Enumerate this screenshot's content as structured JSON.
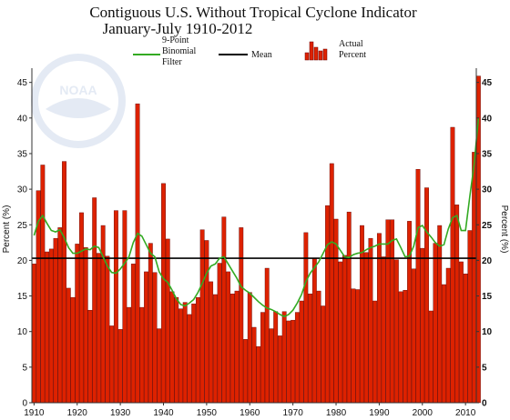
{
  "chart_data": {
    "type": "bar",
    "title": "Contiguous U.S. Without Tropical Cyclone Indicator",
    "subtitle": "January-July 1910-2012",
    "ylabel_left": "Percent (%)",
    "ylabel_right": "Percent (%)",
    "xlabel": "",
    "xlim": [
      1909.5,
      2012.5
    ],
    "ylim": [
      0,
      47
    ],
    "x_ticks": [
      1910,
      1920,
      1930,
      1940,
      1950,
      1960,
      1970,
      1980,
      1990,
      2000,
      2010
    ],
    "y_ticks_left": [
      0,
      5,
      10,
      15,
      20,
      25,
      30,
      35,
      40,
      45
    ],
    "y_ticks_right": [
      0,
      5,
      10,
      15,
      20,
      25,
      30,
      35,
      40,
      45
    ],
    "grid": false,
    "legend": {
      "position": "top",
      "entries": [
        {
          "label_lines": [
            "9-Point",
            "Binomial",
            "Filter"
          ],
          "kind": "line",
          "color": "#33aa22"
        },
        {
          "label_lines": [
            "Mean"
          ],
          "kind": "line",
          "color": "#000000"
        },
        {
          "label_lines": [
            "Actual",
            "Percent"
          ],
          "kind": "bar",
          "color": "#dd2200"
        }
      ]
    },
    "mean": 20.3,
    "years_start": 1910,
    "series": [
      {
        "name": "Actual Percent",
        "kind": "bar",
        "color": "#dd2200",
        "values": [
          19.5,
          29.8,
          33.4,
          21.2,
          21.6,
          23.1,
          24.6,
          33.9,
          16.1,
          14.8,
          22.3,
          26.7,
          21.8,
          13.0,
          28.8,
          21.0,
          24.9,
          20.6,
          10.8,
          27.0,
          10.3,
          27.0,
          13.4,
          19.5,
          42.0,
          13.4,
          18.4,
          22.4,
          18.3,
          10.4,
          30.8,
          23.0,
          15.6,
          14.8,
          13.2,
          14.1,
          12.4,
          13.9,
          14.8,
          24.3,
          22.8,
          17.0,
          15.2,
          19.6,
          26.1,
          18.4,
          15.3,
          15.7,
          24.6,
          8.9,
          15.5,
          10.6,
          7.9,
          12.7,
          18.9,
          10.4,
          12.8,
          9.4,
          12.8,
          11.5,
          11.6,
          12.7,
          14.3,
          23.9,
          15.3,
          20.3,
          15.7,
          13.6,
          27.7,
          33.6,
          25.8,
          19.8,
          20.7,
          26.8,
          16.0,
          15.9,
          24.9,
          21.1,
          23.1,
          14.3,
          23.8,
          20.5,
          25.7,
          25.7,
          20.1,
          15.6,
          15.8,
          25.5,
          18.8,
          32.8,
          21.7,
          30.2,
          12.9,
          22.4,
          24.9,
          16.6,
          18.9,
          38.7,
          27.8,
          19.8,
          18.1,
          24.2,
          35.2,
          45.9
        ]
      },
      {
        "name": "9-Point Binomial Filter",
        "kind": "line",
        "color": "#33aa22",
        "values": [
          23.5,
          25.5,
          26.3,
          25.2,
          24.2,
          24.0,
          24.3,
          23.2,
          21.8,
          21.0,
          21.0,
          21.3,
          21.6,
          21.5,
          22.0,
          21.8,
          20.5,
          19.2,
          18.3,
          18.2,
          18.8,
          19.6,
          20.5,
          22.5,
          23.8,
          23.4,
          22.2,
          21.0,
          20.5,
          18.4,
          17.4,
          16.9,
          15.8,
          14.6,
          13.8,
          13.6,
          14.0,
          14.5,
          15.5,
          16.8,
          18.2,
          19.2,
          19.5,
          20.3,
          20.5,
          19.5,
          18.5,
          17.5,
          16.3,
          15.8,
          15.4,
          14.8,
          14.2,
          13.7,
          13.3,
          13.1,
          12.8,
          12.4,
          12.1,
          12.4,
          13.0,
          14.0,
          15.2,
          17.0,
          18.2,
          19.0,
          19.8,
          21.0,
          22.2,
          22.6,
          22.3,
          21.4,
          20.5,
          20.4,
          20.8,
          21.0,
          21.1,
          21.5,
          21.8,
          22.0,
          22.3,
          22.3,
          22.3,
          22.8,
          23.0,
          21.8,
          20.5,
          20.6,
          22.0,
          24.6,
          24.9,
          24.0,
          23.3,
          22.5,
          22.0,
          22.2,
          24.4,
          26.0,
          26.3,
          24.2,
          24.2,
          29.0,
          33.5,
          40.0
        ]
      }
    ]
  },
  "watermark": {
    "text": "NOAA"
  }
}
